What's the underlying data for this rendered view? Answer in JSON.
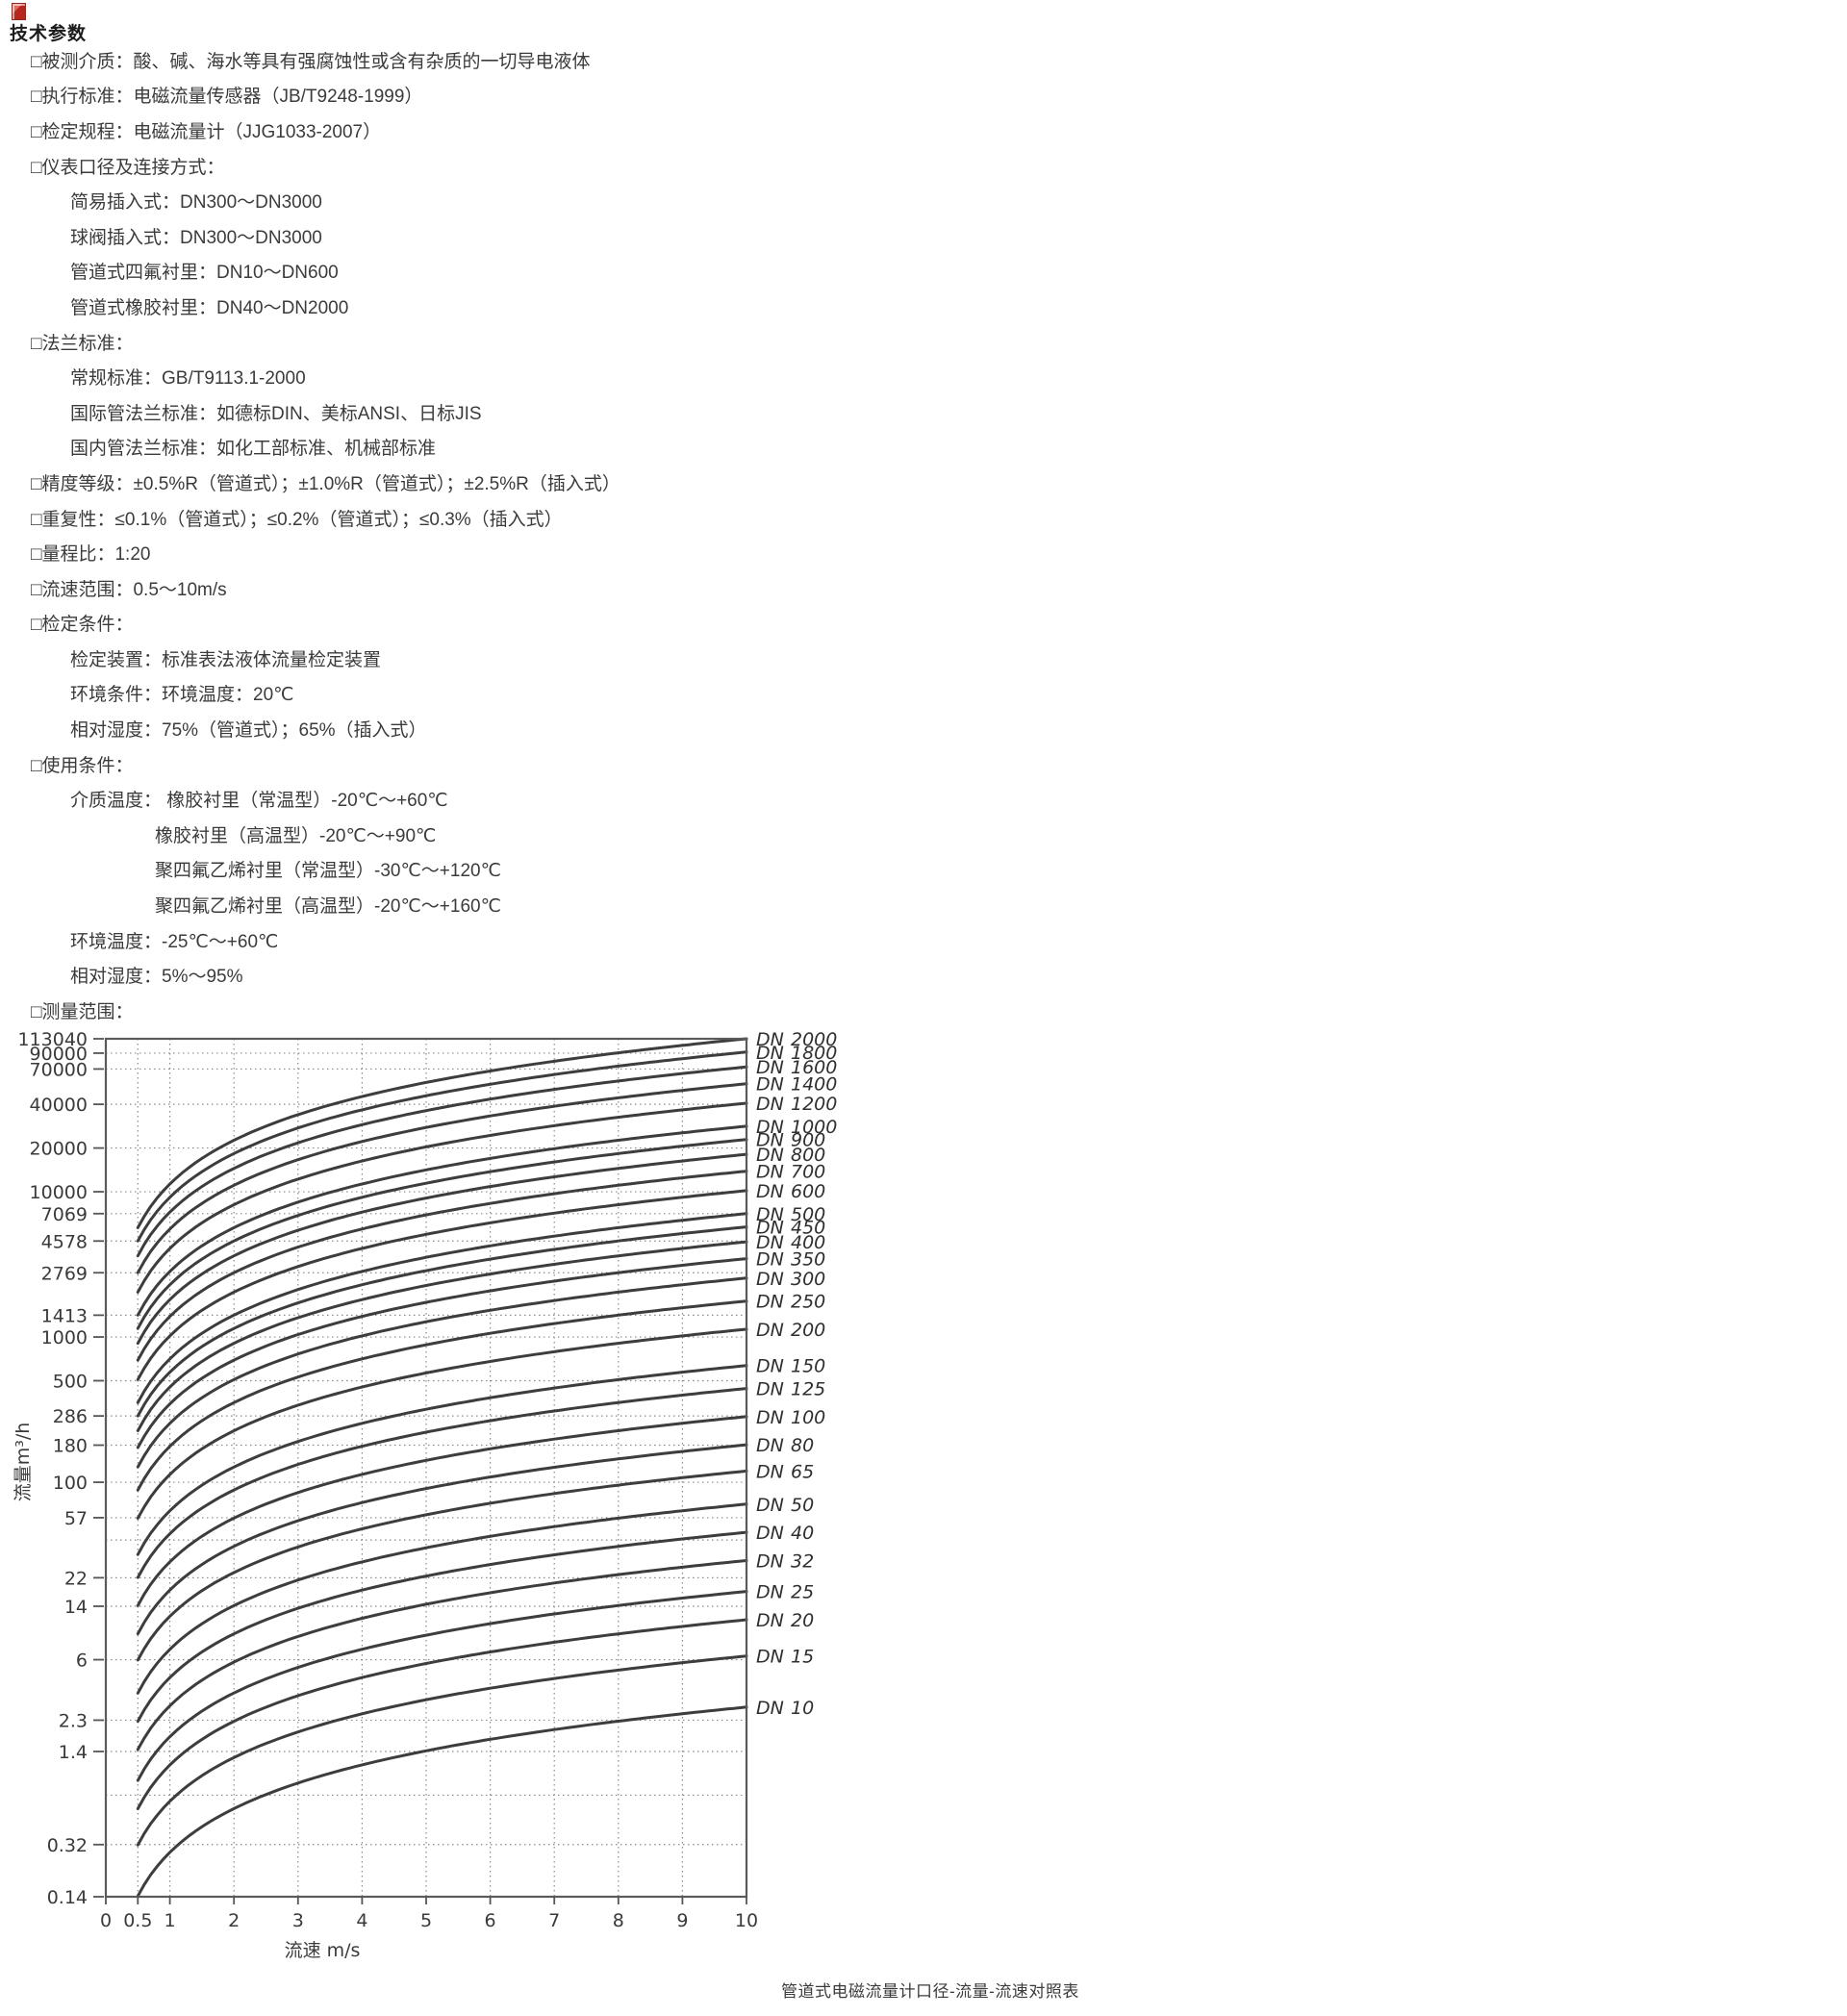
{
  "page": {
    "heading": "技术参数",
    "caption": "管道式电磁流量计口径-流量-流速对照表"
  },
  "parameters": [
    {
      "level": 0,
      "text": "□被测介质：酸、碱、海水等具有强腐蚀性或含有杂质的一切导电液体"
    },
    {
      "level": 0,
      "text": "□执行标准：电磁流量传感器（JB/T9248-1999）"
    },
    {
      "level": 0,
      "text": "□检定规程：电磁流量计（JJG1033-2007）"
    },
    {
      "level": 0,
      "text": "□仪表口径及连接方式："
    },
    {
      "level": 1,
      "text": "简易插入式：DN300～DN3000"
    },
    {
      "level": 1,
      "text": "球阀插入式：DN300～DN3000"
    },
    {
      "level": 1,
      "text": "管道式四氟衬里：DN10～DN600"
    },
    {
      "level": 1,
      "text": "管道式橡胶衬里：DN40～DN2000"
    },
    {
      "level": 0,
      "text": "□法兰标准："
    },
    {
      "level": 1,
      "text": "常规标准：GB/T9113.1-2000"
    },
    {
      "level": 1,
      "text": "国际管法兰标准：如德标DIN、美标ANSI、日标JIS"
    },
    {
      "level": 1,
      "text": "国内管法兰标准：如化工部标准、机械部标准"
    },
    {
      "level": 0,
      "text": "□精度等级：±0.5%R（管道式）；±1.0%R（管道式）；±2.5%R（插入式）"
    },
    {
      "level": 0,
      "text": "□重复性：≤0.1%（管道式）；≤0.2%（管道式）；≤0.3%（插入式）"
    },
    {
      "level": 0,
      "text": "□量程比：1:20"
    },
    {
      "level": 0,
      "text": "□流速范围：0.5～10m/s"
    },
    {
      "level": 0,
      "text": "□检定条件："
    },
    {
      "level": 1,
      "text": "检定装置：标准表法液体流量检定装置"
    },
    {
      "level": 1,
      "text": "环境条件：环境温度：20℃"
    },
    {
      "level": 1,
      "text": "相对湿度：75%（管道式）；65%（插入式）"
    },
    {
      "level": 0,
      "text": "□使用条件："
    },
    {
      "level": 1,
      "text": "介质温度： 橡胶衬里（常温型）-20℃～+60℃"
    },
    {
      "level": 2,
      "text": "橡胶衬里（高温型）-20℃～+90℃"
    },
    {
      "level": 2,
      "text": "聚四氟乙烯衬里（常温型）-30℃～+120℃"
    },
    {
      "level": 2,
      "text": "聚四氟乙烯衬里（高温型）-20℃～+160℃"
    },
    {
      "level": 1,
      "text": "环境温度：-25℃～+60℃"
    },
    {
      "level": 1,
      "text": "相对湿度：5%～95%"
    },
    {
      "level": 0,
      "text": "□测量范围："
    }
  ],
  "chart_data": {
    "type": "line",
    "x_axis": {
      "label": "流速 m/s",
      "scale": "linear",
      "min": 0,
      "max": 10,
      "ticks": [
        {
          "label": "0",
          "value": 0
        },
        {
          "label": "0.5",
          "value": 0.5
        },
        {
          "label": "1",
          "value": 1
        },
        {
          "label": "2",
          "value": 2
        },
        {
          "label": "3",
          "value": 3
        },
        {
          "label": "4",
          "value": 4
        },
        {
          "label": "5",
          "value": 5
        },
        {
          "label": "6",
          "value": 6
        },
        {
          "label": "7",
          "value": 7
        },
        {
          "label": "8",
          "value": 8
        },
        {
          "label": "9",
          "value": 9
        },
        {
          "label": "10",
          "value": 10
        }
      ]
    },
    "y_axis": {
      "label": "流量m³/h",
      "scale": "log",
      "min": 0.14,
      "max": 113040,
      "ticks": [
        {
          "label": "113040",
          "value": 113040
        },
        {
          "label": "90000",
          "value": 90000
        },
        {
          "label": "70000",
          "value": 70000
        },
        {
          "label": "40000",
          "value": 40000
        },
        {
          "label": "20000",
          "value": 20000
        },
        {
          "label": "10000",
          "value": 10000
        },
        {
          "label": "7069",
          "value": 7069
        },
        {
          "label": "4578",
          "value": 4578
        },
        {
          "label": "2769",
          "value": 2769
        },
        {
          "label": "1413",
          "value": 1413
        },
        {
          "label": "1000",
          "value": 1000
        },
        {
          "label": "500",
          "value": 500
        },
        {
          "label": "286",
          "value": 286
        },
        {
          "label": "180",
          "value": 180
        },
        {
          "label": "100",
          "value": 100
        },
        {
          "label": "57",
          "value": 57
        },
        {
          "label": "22",
          "value": 22
        },
        {
          "label": "14",
          "value": 14
        },
        {
          "label": "6",
          "value": 6
        },
        {
          "label": "2.3",
          "value": 2.3
        },
        {
          "label": "1.4",
          "value": 1.4
        },
        {
          "label": "0.32",
          "value": 0.32
        },
        {
          "label": "0.14",
          "value": 0.14
        }
      ],
      "unlabeled_gridlines": [
        40,
        0.7
      ]
    },
    "velocity_range_m_s": [
      0.5,
      10
    ],
    "series": [
      {
        "label": "DN 2000",
        "dn": 2000,
        "q_min_m3h": 5655,
        "q_max_m3h": 113097
      },
      {
        "label": "DN 1800",
        "dn": 1800,
        "q_min_m3h": 4580,
        "q_max_m3h": 91609
      },
      {
        "label": "DN 1600",
        "dn": 1600,
        "q_min_m3h": 3619,
        "q_max_m3h": 72382
      },
      {
        "label": "DN 1400",
        "dn": 1400,
        "q_min_m3h": 2771,
        "q_max_m3h": 55418
      },
      {
        "label": "DN 1200",
        "dn": 1200,
        "q_min_m3h": 2036,
        "q_max_m3h": 40715
      },
      {
        "label": "DN 1000",
        "dn": 1000,
        "q_min_m3h": 1414,
        "q_max_m3h": 28274
      },
      {
        "label": "DN 900",
        "dn": 900,
        "q_min_m3h": 1145,
        "q_max_m3h": 22902
      },
      {
        "label": "DN 800",
        "dn": 800,
        "q_min_m3h": 905,
        "q_max_m3h": 18096
      },
      {
        "label": "DN 700",
        "dn": 700,
        "q_min_m3h": 693,
        "q_max_m3h": 13854
      },
      {
        "label": "DN 600",
        "dn": 600,
        "q_min_m3h": 509,
        "q_max_m3h": 10179
      },
      {
        "label": "DN 500",
        "dn": 500,
        "q_min_m3h": 353,
        "q_max_m3h": 7069
      },
      {
        "label": "DN 450",
        "dn": 450,
        "q_min_m3h": 286,
        "q_max_m3h": 5726
      },
      {
        "label": "DN 400",
        "dn": 400,
        "q_min_m3h": 226,
        "q_max_m3h": 4524
      },
      {
        "label": "DN 350",
        "dn": 350,
        "q_min_m3h": 173,
        "q_max_m3h": 3464
      },
      {
        "label": "DN 300",
        "dn": 300,
        "q_min_m3h": 127,
        "q_max_m3h": 2545
      },
      {
        "label": "DN 250",
        "dn": 250,
        "q_min_m3h": 88.4,
        "q_max_m3h": 1767
      },
      {
        "label": "DN 200",
        "dn": 200,
        "q_min_m3h": 56.5,
        "q_max_m3h": 1131
      },
      {
        "label": "DN 150",
        "dn": 150,
        "q_min_m3h": 31.8,
        "q_max_m3h": 636
      },
      {
        "label": "DN 125",
        "dn": 125,
        "q_min_m3h": 22.1,
        "q_max_m3h": 442
      },
      {
        "label": "DN 100",
        "dn": 100,
        "q_min_m3h": 14.1,
        "q_max_m3h": 283
      },
      {
        "label": "DN 80",
        "dn": 80,
        "q_min_m3h": 9.05,
        "q_max_m3h": 181
      },
      {
        "label": "DN 65",
        "dn": 65,
        "q_min_m3h": 5.97,
        "q_max_m3h": 119.4
      },
      {
        "label": "DN 50",
        "dn": 50,
        "q_min_m3h": 3.53,
        "q_max_m3h": 70.7
      },
      {
        "label": "DN 40",
        "dn": 40,
        "q_min_m3h": 2.26,
        "q_max_m3h": 45.2
      },
      {
        "label": "DN 32",
        "dn": 32,
        "q_min_m3h": 1.45,
        "q_max_m3h": 28.9
      },
      {
        "label": "DN 25",
        "dn": 25,
        "q_min_m3h": 0.88,
        "q_max_m3h": 17.7
      },
      {
        "label": "DN 20",
        "dn": 20,
        "q_min_m3h": 0.57,
        "q_max_m3h": 11.3
      },
      {
        "label": "DN 15",
        "dn": 15,
        "q_min_m3h": 0.32,
        "q_max_m3h": 6.36
      },
      {
        "label": "DN 10",
        "dn": 10,
        "q_min_m3h": 0.14,
        "q_max_m3h": 2.83
      }
    ]
  }
}
